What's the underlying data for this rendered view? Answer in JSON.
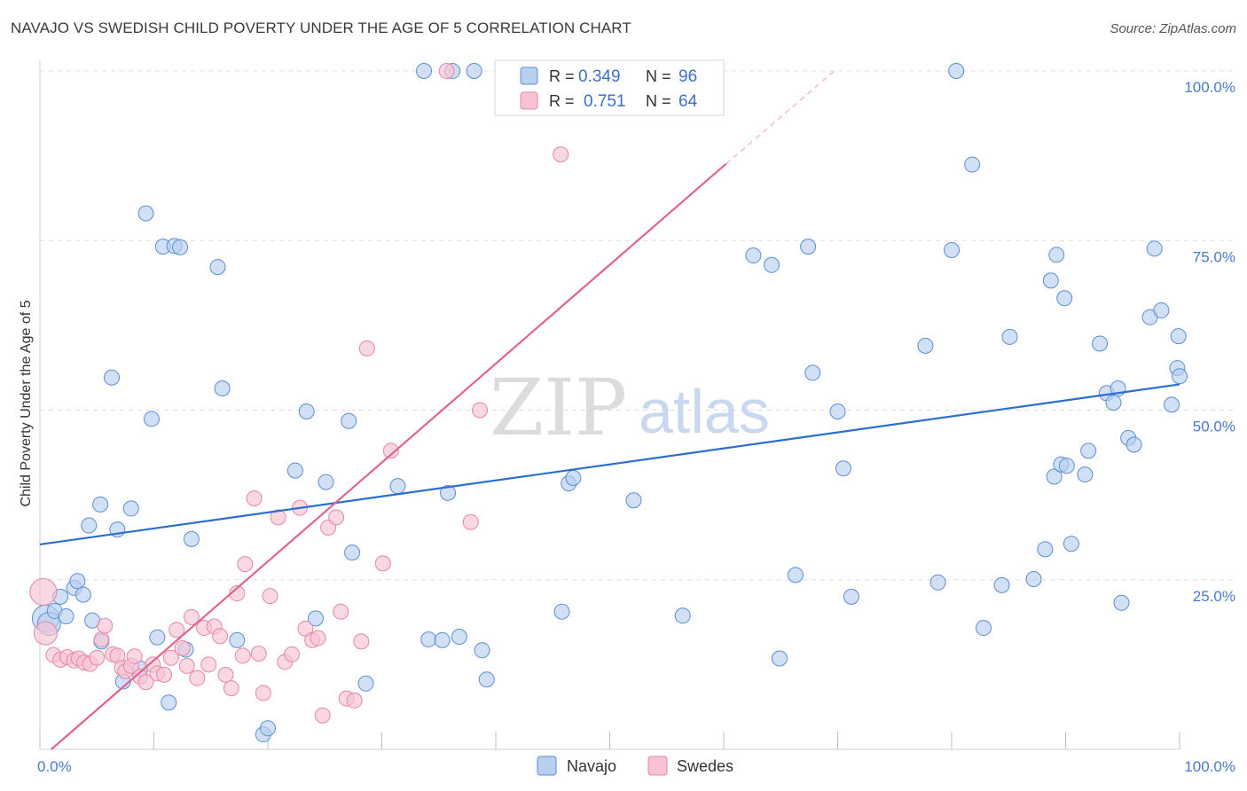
{
  "title": "NAVAJO VS SWEDISH CHILD POVERTY UNDER THE AGE OF 5 CORRELATION CHART",
  "source": "Source: ZipAtlas.com",
  "watermark": {
    "zip": "ZIP",
    "atlas": "atlas"
  },
  "colors": {
    "navajo_fill": "#b9cff0",
    "navajo_stroke": "#5b8fd6",
    "navajo_line": "#2a6fce",
    "swedes_fill": "#f7c3d3",
    "swedes_stroke": "#e787a6",
    "swedes_line": "#e0648e",
    "grid": "#dddddd",
    "accent_text": "#4a7ad0"
  },
  "legend_top": {
    "rows": [
      {
        "r_label": "R =",
        "r_value": "0.349",
        "n_label": "N =",
        "n_value": "96"
      },
      {
        "r_label": "R =",
        "r_value": "0.751",
        "n_label": "N =",
        "n_value": "64"
      }
    ]
  },
  "chart_data": {
    "type": "scatter",
    "title": "NAVAJO VS SWEDISH CHILD POVERTY UNDER THE AGE OF 5 CORRELATION CHART",
    "xlabel": "",
    "ylabel": "Child Poverty Under the Age of 5",
    "xlim": [
      0,
      100
    ],
    "ylim": [
      0,
      100
    ],
    "x_tick_labels": [
      "0.0%",
      "100.0%"
    ],
    "y_ticks": [
      25,
      50,
      75,
      100
    ],
    "y_tick_labels": [
      "25.0%",
      "50.0%",
      "75.0%",
      "100.0%"
    ],
    "grid": true,
    "legend_position": "bottom-center",
    "series": [
      {
        "name": "Navajo",
        "r": 0.349,
        "n": 96,
        "trend": {
          "x0": 0,
          "y0": 30.2,
          "x1": 100,
          "y1": 53.8
        },
        "points": [
          [
            0.5,
            19.3
          ],
          [
            0.8,
            18.5
          ],
          [
            1.3,
            20.4
          ],
          [
            1.8,
            22.5
          ],
          [
            2.3,
            19.6
          ],
          [
            3.0,
            23.8
          ],
          [
            3.3,
            24.8
          ],
          [
            3.8,
            22.8
          ],
          [
            4.3,
            33.0
          ],
          [
            4.6,
            19.0
          ],
          [
            5.4,
            15.9
          ],
          [
            5.3,
            36.1
          ],
          [
            6.3,
            54.8
          ],
          [
            6.8,
            32.4
          ],
          [
            7.3,
            10.0
          ],
          [
            8.0,
            35.5
          ],
          [
            8.8,
            11.9
          ],
          [
            9.3,
            79.0
          ],
          [
            9.8,
            48.7
          ],
          [
            10.3,
            16.5
          ],
          [
            10.8,
            74.1
          ],
          [
            11.3,
            6.9
          ],
          [
            11.8,
            74.2
          ],
          [
            12.3,
            74.0
          ],
          [
            12.8,
            14.7
          ],
          [
            13.3,
            31.0
          ],
          [
            15.6,
            71.1
          ],
          [
            16.0,
            53.2
          ],
          [
            17.3,
            16.1
          ],
          [
            19.6,
            2.2
          ],
          [
            20.0,
            3.1
          ],
          [
            22.4,
            41.1
          ],
          [
            23.4,
            49.8
          ],
          [
            24.2,
            19.3
          ],
          [
            25.1,
            39.4
          ],
          [
            27.1,
            48.4
          ],
          [
            27.4,
            29.0
          ],
          [
            28.6,
            9.7
          ],
          [
            31.4,
            38.8
          ],
          [
            33.7,
            100.0
          ],
          [
            34.1,
            16.2
          ],
          [
            35.3,
            16.1
          ],
          [
            35.8,
            37.8
          ],
          [
            36.2,
            100.0
          ],
          [
            36.8,
            16.6
          ],
          [
            38.1,
            100.0
          ],
          [
            38.8,
            14.6
          ],
          [
            39.2,
            10.3
          ],
          [
            42.9,
            100.0
          ],
          [
            45.8,
            20.3
          ],
          [
            46.4,
            39.2
          ],
          [
            46.8,
            40.0
          ],
          [
            52.1,
            36.7
          ],
          [
            56.4,
            19.7
          ],
          [
            62.6,
            72.8
          ],
          [
            64.2,
            71.4
          ],
          [
            64.9,
            13.4
          ],
          [
            66.3,
            25.7
          ],
          [
            67.4,
            74.1
          ],
          [
            67.8,
            55.5
          ],
          [
            70.0,
            49.8
          ],
          [
            70.5,
            41.4
          ],
          [
            71.2,
            22.5
          ],
          [
            77.7,
            59.5
          ],
          [
            78.8,
            24.6
          ],
          [
            80.0,
            73.6
          ],
          [
            80.4,
            100.0
          ],
          [
            81.8,
            86.2
          ],
          [
            82.8,
            17.9
          ],
          [
            84.4,
            24.2
          ],
          [
            85.1,
            60.8
          ],
          [
            87.2,
            25.1
          ],
          [
            88.2,
            29.5
          ],
          [
            88.7,
            69.1
          ],
          [
            89.0,
            40.2
          ],
          [
            89.2,
            72.9
          ],
          [
            89.6,
            42.0
          ],
          [
            89.9,
            66.5
          ],
          [
            90.1,
            41.8
          ],
          [
            90.5,
            30.3
          ],
          [
            91.7,
            40.5
          ],
          [
            92.0,
            44.0
          ],
          [
            93.0,
            59.8
          ],
          [
            93.6,
            52.5
          ],
          [
            94.2,
            51.1
          ],
          [
            94.6,
            53.2
          ],
          [
            94.9,
            21.6
          ],
          [
            95.5,
            45.9
          ],
          [
            96.0,
            44.9
          ],
          [
            97.4,
            63.7
          ],
          [
            97.8,
            73.8
          ],
          [
            98.4,
            64.7
          ],
          [
            99.3,
            50.8
          ],
          [
            99.8,
            56.2
          ],
          [
            99.9,
            60.9
          ],
          [
            100.0,
            55.0
          ]
        ]
      },
      {
        "name": "Swedes",
        "r": 0.751,
        "n": 64,
        "trend": {
          "x0": 1.0,
          "y0": 0.0,
          "x1": 60.2,
          "y1": 86.3,
          "x1_ext": 69.7,
          "y1_ext": 100.0
        },
        "points": [
          [
            0.3,
            23.2
          ],
          [
            0.5,
            17.1
          ],
          [
            1.2,
            13.9
          ],
          [
            1.8,
            13.2
          ],
          [
            2.4,
            13.6
          ],
          [
            3.0,
            13.1
          ],
          [
            3.4,
            13.4
          ],
          [
            3.9,
            12.8
          ],
          [
            4.4,
            12.6
          ],
          [
            5.0,
            13.5
          ],
          [
            5.4,
            16.2
          ],
          [
            5.7,
            18.2
          ],
          [
            6.4,
            14.0
          ],
          [
            6.8,
            13.8
          ],
          [
            7.2,
            12.0
          ],
          [
            7.5,
            11.5
          ],
          [
            8.0,
            12.3
          ],
          [
            8.3,
            13.7
          ],
          [
            8.8,
            10.7
          ],
          [
            9.3,
            9.9
          ],
          [
            9.9,
            12.5
          ],
          [
            10.3,
            11.2
          ],
          [
            10.9,
            11.0
          ],
          [
            11.5,
            13.5
          ],
          [
            12.0,
            17.6
          ],
          [
            12.5,
            14.9
          ],
          [
            12.9,
            12.3
          ],
          [
            13.3,
            19.5
          ],
          [
            13.8,
            10.5
          ],
          [
            14.4,
            17.9
          ],
          [
            14.8,
            12.5
          ],
          [
            15.3,
            18.1
          ],
          [
            15.8,
            16.7
          ],
          [
            16.3,
            11.0
          ],
          [
            16.8,
            9.0
          ],
          [
            17.3,
            23.0
          ],
          [
            17.8,
            13.8
          ],
          [
            18.0,
            27.3
          ],
          [
            18.8,
            37.0
          ],
          [
            19.2,
            14.1
          ],
          [
            19.6,
            8.3
          ],
          [
            20.2,
            22.6
          ],
          [
            20.9,
            34.2
          ],
          [
            21.5,
            12.9
          ],
          [
            22.1,
            14.0
          ],
          [
            22.8,
            35.6
          ],
          [
            23.3,
            17.8
          ],
          [
            23.9,
            16.1
          ],
          [
            24.4,
            16.4
          ],
          [
            24.8,
            5.0
          ],
          [
            25.3,
            32.7
          ],
          [
            26.0,
            34.2
          ],
          [
            26.4,
            20.3
          ],
          [
            26.9,
            7.5
          ],
          [
            27.6,
            7.2
          ],
          [
            28.2,
            15.9
          ],
          [
            28.7,
            59.1
          ],
          [
            30.1,
            27.4
          ],
          [
            30.8,
            44.0
          ],
          [
            35.7,
            100.0
          ],
          [
            37.8,
            33.5
          ],
          [
            38.6,
            50.0
          ],
          [
            45.7,
            87.7
          ],
          [
            54.4,
            100.0
          ]
        ]
      }
    ]
  },
  "legend_bottom": {
    "items": [
      {
        "label": "Navajo"
      },
      {
        "label": "Swedes"
      }
    ]
  }
}
